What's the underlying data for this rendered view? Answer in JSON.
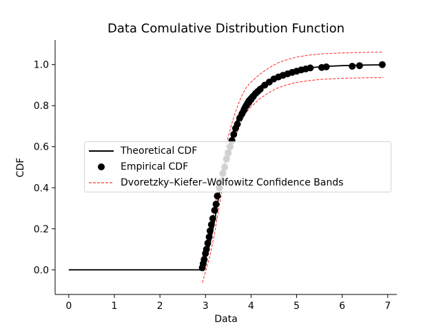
{
  "chart_data": {
    "type": "line",
    "title": "Data Comulative Distribution Function",
    "xlabel": "Data",
    "ylabel": "CDF",
    "xlim": [
      -0.3,
      7.2
    ],
    "ylim": [
      -0.12,
      1.12
    ],
    "xticks": [
      0,
      1,
      2,
      3,
      4,
      5,
      6,
      7
    ],
    "yticks": [
      0.0,
      0.2,
      0.4,
      0.6,
      0.8,
      1.0
    ],
    "xtick_labels": [
      "0",
      "1",
      "2",
      "3",
      "4",
      "5",
      "6",
      "7"
    ],
    "ytick_labels": [
      "0.0",
      "0.2",
      "0.4",
      "0.6",
      "0.8",
      "1.0"
    ],
    "grid": false,
    "legend_position": "center",
    "series": [
      {
        "name": "Theoretical CDF",
        "kind": "line",
        "color": "#000000",
        "x": [
          0.0,
          2.93,
          3.0,
          3.1,
          3.2,
          3.3,
          3.4,
          3.5,
          3.6,
          3.7,
          3.8,
          3.9,
          4.0,
          4.2,
          4.4,
          4.6,
          4.8,
          5.0,
          5.3,
          5.6,
          6.0,
          6.5,
          6.9
        ],
        "y": [
          0.0,
          0.0,
          0.05,
          0.13,
          0.24,
          0.37,
          0.49,
          0.59,
          0.67,
          0.735,
          0.79,
          0.83,
          0.855,
          0.895,
          0.925,
          0.948,
          0.963,
          0.975,
          0.985,
          0.991,
          0.995,
          0.998,
          0.999
        ]
      },
      {
        "name": "Empirical CDF",
        "kind": "scatter",
        "color": "#000000",
        "x": [
          2.93,
          2.95,
          2.97,
          3.0,
          3.02,
          3.05,
          3.08,
          3.1,
          3.13,
          3.16,
          3.2,
          3.23,
          3.26,
          3.3,
          3.34,
          3.38,
          3.42,
          3.46,
          3.5,
          3.54,
          3.58,
          3.62,
          3.66,
          3.7,
          3.75,
          3.8,
          3.85,
          3.9,
          3.95,
          4.0,
          4.05,
          4.1,
          4.15,
          4.2,
          4.3,
          4.4,
          4.5,
          4.6,
          4.7,
          4.8,
          4.9,
          5.0,
          5.1,
          5.2,
          5.3,
          5.55,
          5.65,
          6.22,
          6.38,
          6.88
        ],
        "y": [
          0.01,
          0.03,
          0.05,
          0.08,
          0.1,
          0.13,
          0.16,
          0.19,
          0.22,
          0.25,
          0.29,
          0.32,
          0.36,
          0.4,
          0.43,
          0.47,
          0.5,
          0.54,
          0.57,
          0.6,
          0.63,
          0.66,
          0.69,
          0.71,
          0.74,
          0.76,
          0.78,
          0.8,
          0.815,
          0.83,
          0.845,
          0.86,
          0.87,
          0.88,
          0.9,
          0.915,
          0.93,
          0.94,
          0.948,
          0.955,
          0.962,
          0.968,
          0.974,
          0.979,
          0.984,
          0.986,
          0.989,
          0.992,
          0.995,
          1.0
        ]
      },
      {
        "name": "Dvoretzky–Kiefer–Wolfowitz Confidence Bands",
        "kind": "band",
        "color": "#ff0000",
        "x": [
          2.93,
          3.0,
          3.1,
          3.2,
          3.3,
          3.4,
          3.5,
          3.6,
          3.7,
          3.8,
          3.9,
          4.0,
          4.2,
          4.4,
          4.6,
          4.8,
          5.0,
          5.3,
          5.6,
          6.0,
          6.5,
          6.9
        ],
        "upper": [
          0.063,
          0.11,
          0.19,
          0.3,
          0.43,
          0.55,
          0.65,
          0.73,
          0.795,
          0.85,
          0.89,
          0.915,
          0.955,
          0.985,
          1.01,
          1.025,
          1.037,
          1.047,
          1.053,
          1.057,
          1.06,
          1.061
        ],
        "lower": [
          -0.063,
          -0.01,
          0.07,
          0.18,
          0.31,
          0.43,
          0.53,
          0.61,
          0.675,
          0.73,
          0.77,
          0.795,
          0.835,
          0.865,
          0.888,
          0.903,
          0.913,
          0.923,
          0.929,
          0.933,
          0.936,
          0.937
        ]
      }
    ]
  }
}
